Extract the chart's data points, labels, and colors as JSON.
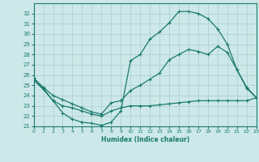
{
  "xlabel": "Humidex (Indice chaleur)",
  "xlim": [
    0,
    23
  ],
  "ylim": [
    21,
    33
  ],
  "yticks": [
    21,
    22,
    23,
    24,
    25,
    26,
    27,
    28,
    29,
    30,
    31,
    32
  ],
  "xticks": [
    0,
    1,
    2,
    3,
    4,
    5,
    6,
    7,
    8,
    9,
    10,
    11,
    12,
    13,
    14,
    15,
    16,
    17,
    18,
    19,
    20,
    21,
    22,
    23
  ],
  "bg_color": "#cce8e8",
  "grid_color": "#aacccc",
  "line_color": "#1a7a6e",
  "line1_x": [
    0,
    1,
    2,
    3,
    4,
    5,
    6,
    7,
    8,
    9,
    10,
    11,
    12,
    13,
    14,
    15,
    16,
    17,
    18,
    19,
    20,
    21,
    22,
    23
  ],
  "line1_y": [
    25.7,
    24.7,
    23.5,
    22.3,
    21.7,
    21.4,
    21.3,
    21.1,
    21.4,
    22.5,
    27.4,
    28.0,
    29.5,
    30.2,
    31.1,
    32.2,
    32.2,
    32.0,
    31.5,
    30.5,
    29.0,
    26.5,
    24.7,
    23.8
  ],
  "line2_x": [
    0,
    1,
    2,
    3,
    4,
    5,
    6,
    7,
    8,
    9,
    10,
    11,
    12,
    13,
    14,
    15,
    16,
    17,
    18,
    19,
    20,
    21,
    22,
    23
  ],
  "line2_y": [
    25.7,
    24.8,
    24.0,
    23.6,
    23.2,
    22.8,
    22.4,
    22.2,
    23.3,
    23.5,
    24.5,
    25.0,
    25.6,
    26.2,
    27.5,
    28.0,
    28.5,
    28.3,
    28.0,
    28.8,
    28.2,
    26.5,
    24.8,
    23.8
  ],
  "line3_x": [
    0,
    1,
    2,
    3,
    4,
    5,
    6,
    7,
    8,
    9,
    10,
    11,
    12,
    13,
    14,
    15,
    16,
    17,
    18,
    19,
    20,
    21,
    22,
    23
  ],
  "line3_y": [
    25.5,
    24.6,
    23.5,
    23.0,
    22.8,
    22.5,
    22.2,
    22.0,
    22.5,
    22.8,
    23.0,
    23.0,
    23.0,
    23.1,
    23.2,
    23.3,
    23.4,
    23.5,
    23.5,
    23.5,
    23.5,
    23.5,
    23.5,
    23.8
  ]
}
